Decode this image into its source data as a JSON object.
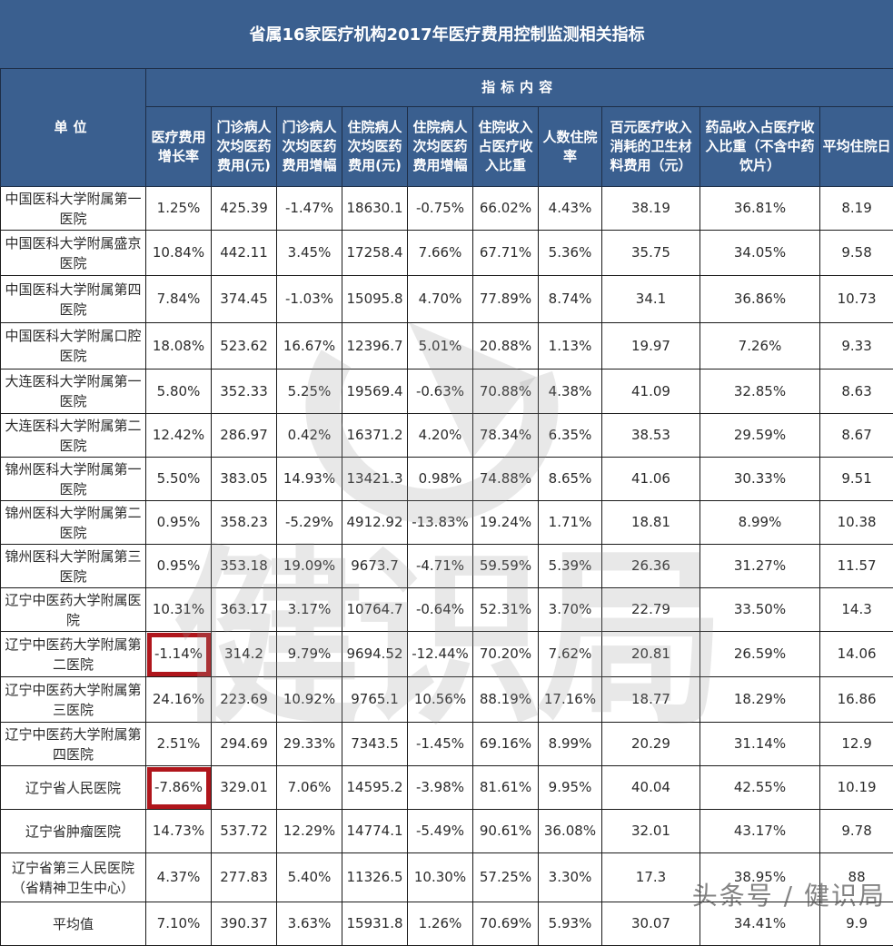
{
  "title": "省属16家医疗机构2017年医疗费用控制监测相关指标",
  "header": {
    "unit_label": "单位",
    "group_label": "指标内容",
    "columns": [
      "医疗费用增长率",
      "门诊病人次均医药费用(元)",
      "门诊病人次均医药费用增幅",
      "住院病人次均医药费用(元)",
      "住院病人次均医药费用增幅",
      "住院收入占医疗收入比重",
      "人数住院率",
      "百元医疗收入消耗的卫生材料费用（元）",
      "药品收入占医疗收入比重（不含中药饮片）",
      "平均住院日"
    ]
  },
  "rows": [
    {
      "unit": "中国医科大学附属第一医院",
      "values": [
        "1.25%",
        "425.39",
        "-1.47%",
        "18630.1",
        "-0.75%",
        "66.02%",
        "4.43%",
        "38.19",
        "36.81%",
        "8.19"
      ]
    },
    {
      "unit": "中国医科大学附属盛京医院",
      "values": [
        "10.84%",
        "442.11",
        "3.45%",
        "17258.4",
        "7.66%",
        "67.71%",
        "5.36%",
        "35.75",
        "34.05%",
        "9.58"
      ]
    },
    {
      "unit": "中国医科大学附属第四医院",
      "values": [
        "7.84%",
        "374.45",
        "-1.03%",
        "15095.8",
        "4.70%",
        "77.89%",
        "8.74%",
        "34.1",
        "36.86%",
        "10.73"
      ]
    },
    {
      "unit": "中国医科大学附属口腔医院",
      "values": [
        "18.08%",
        "523.62",
        "16.67%",
        "12396.7",
        "5.01%",
        "20.88%",
        "1.13%",
        "19.97",
        "7.26%",
        "9.33"
      ]
    },
    {
      "unit": "大连医科大学附属第一医院",
      "values": [
        "5.80%",
        "352.33",
        "5.25%",
        "19569.4",
        "-0.63%",
        "70.88%",
        "4.38%",
        "41.09",
        "32.85%",
        "8.63"
      ]
    },
    {
      "unit": "大连医科大学附属第二医院",
      "values": [
        "12.42%",
        "286.97",
        "0.42%",
        "16371.2",
        "4.20%",
        "78.34%",
        "6.35%",
        "38.53",
        "29.59%",
        "8.67"
      ]
    },
    {
      "unit": "锦州医科大学附属第一医院",
      "values": [
        "5.50%",
        "383.05",
        "14.93%",
        "13421.3",
        "0.98%",
        "74.88%",
        "8.65%",
        "41.06",
        "30.33%",
        "9.51"
      ]
    },
    {
      "unit": "锦州医科大学附属第二医院",
      "values": [
        "0.95%",
        "358.23",
        "-5.29%",
        "4912.92",
        "-13.83%",
        "19.24%",
        "1.71%",
        "18.81",
        "8.99%",
        "10.38"
      ]
    },
    {
      "unit": "锦州医科大学附属第三医院",
      "values": [
        "0.95%",
        "353.18",
        "19.09%",
        "9673.7",
        "-4.71%",
        "59.59%",
        "5.39%",
        "26.36",
        "31.27%",
        "11.57"
      ]
    },
    {
      "unit": "辽宁中医药大学附属医院",
      "values": [
        "10.31%",
        "363.17",
        "3.17%",
        "10764.7",
        "-0.64%",
        "52.31%",
        "3.70%",
        "22.79",
        "33.50%",
        "14.3"
      ]
    },
    {
      "unit": "辽宁中医药大学附属第二医院",
      "values": [
        "-1.14%",
        "314.2",
        "9.79%",
        "9694.52",
        "-12.44%",
        "70.20%",
        "7.62%",
        "20.81",
        "26.59%",
        "14.06"
      ],
      "highlight_first": true
    },
    {
      "unit": "辽宁中医药大学附属第三医院",
      "values": [
        "24.16%",
        "223.69",
        "10.92%",
        "9765.1",
        "10.56%",
        "88.19%",
        "17.16%",
        "18.77",
        "18.29%",
        "16.86"
      ]
    },
    {
      "unit": "辽宁中医药大学附属第四医院",
      "values": [
        "2.51%",
        "294.69",
        "29.33%",
        "7343.5",
        "-1.45%",
        "69.16%",
        "8.99%",
        "20.29",
        "31.14%",
        "12.9"
      ]
    },
    {
      "unit": "辽宁省人民医院",
      "values": [
        "-7.86%",
        "329.01",
        "7.06%",
        "14595.2",
        "-3.98%",
        "81.61%",
        "9.95%",
        "40.04",
        "42.55%",
        "10.19"
      ],
      "highlight_first": true
    },
    {
      "unit": "辽宁省肿瘤医院",
      "values": [
        "14.73%",
        "537.72",
        "12.29%",
        "14774.1",
        "-5.49%",
        "90.61%",
        "36.08%",
        "32.01",
        "43.17%",
        "9.78"
      ]
    },
    {
      "unit": "辽宁省第三人民医院（省精神卫生中心）",
      "values": [
        "4.37%",
        "277.83",
        "5.40%",
        "11326.5",
        "10.30%",
        "57.25%",
        "3.30%",
        "17.3",
        "38.95%",
        "88"
      ]
    },
    {
      "unit": "平均值",
      "values": [
        "7.10%",
        "390.37",
        "3.63%",
        "15931.8",
        "1.26%",
        "70.69%",
        "5.93%",
        "30.07",
        "34.41%",
        "9.9"
      ]
    }
  ],
  "colors": {
    "header_bg": "#3a5f8f",
    "header_text": "#ffffff",
    "highlight_border": "#b0161c",
    "grid": "#1a1a1a"
  },
  "watermark": {
    "text": "健识局",
    "footer": "头条号 / 健识局"
  },
  "chart_data": {
    "type": "table",
    "title": "省属16家医疗机构2017年医疗费用控制监测相关指标",
    "columns": [
      "单位",
      "医疗费用增长率",
      "门诊病人次均医药费用(元)",
      "门诊病人次均医药费用增幅",
      "住院病人次均医药费用(元)",
      "住院病人次均医药费用增幅",
      "住院收入占医疗收入比重",
      "人数住院率",
      "百元医疗收入消耗的卫生材料费用（元）",
      "药品收入占医疗收入比重（不含中药饮片）",
      "平均住院日"
    ],
    "rows": [
      [
        "中国医科大学附属第一医院",
        "1.25%",
        425.39,
        "-1.47%",
        18630.1,
        "-0.75%",
        "66.02%",
        "4.43%",
        38.19,
        "36.81%",
        8.19
      ],
      [
        "中国医科大学附属盛京医院",
        "10.84%",
        442.11,
        "3.45%",
        17258.4,
        "7.66%",
        "67.71%",
        "5.36%",
        35.75,
        "34.05%",
        9.58
      ],
      [
        "中国医科大学附属第四医院",
        "7.84%",
        374.45,
        "-1.03%",
        15095.8,
        "4.70%",
        "77.89%",
        "8.74%",
        34.1,
        "36.86%",
        10.73
      ],
      [
        "中国医科大学附属口腔医院",
        "18.08%",
        523.62,
        "16.67%",
        12396.7,
        "5.01%",
        "20.88%",
        "1.13%",
        19.97,
        "7.26%",
        9.33
      ],
      [
        "大连医科大学附属第一医院",
        "5.80%",
        352.33,
        "5.25%",
        19569.4,
        "-0.63%",
        "70.88%",
        "4.38%",
        41.09,
        "32.85%",
        8.63
      ],
      [
        "大连医科大学附属第二医院",
        "12.42%",
        286.97,
        "0.42%",
        16371.2,
        "4.20%",
        "78.34%",
        "6.35%",
        38.53,
        "29.59%",
        8.67
      ],
      [
        "锦州医科大学附属第一医院",
        "5.50%",
        383.05,
        "14.93%",
        13421.3,
        "0.98%",
        "74.88%",
        "8.65%",
        41.06,
        "30.33%",
        9.51
      ],
      [
        "锦州医科大学附属第二医院",
        "0.95%",
        358.23,
        "-5.29%",
        4912.92,
        "-13.83%",
        "19.24%",
        "1.71%",
        18.81,
        "8.99%",
        10.38
      ],
      [
        "锦州医科大学附属第三医院",
        "0.95%",
        353.18,
        "19.09%",
        9673.7,
        "-4.71%",
        "59.59%",
        "5.39%",
        26.36,
        "31.27%",
        11.57
      ],
      [
        "辽宁中医药大学附属医院",
        "10.31%",
        363.17,
        "3.17%",
        10764.7,
        "-0.64%",
        "52.31%",
        "3.70%",
        22.79,
        "33.50%",
        14.3
      ],
      [
        "辽宁中医药大学附属第二医院",
        "-1.14%",
        314.2,
        "9.79%",
        9694.52,
        "-12.44%",
        "70.20%",
        "7.62%",
        20.81,
        "26.59%",
        14.06
      ],
      [
        "辽宁中医药大学附属第三医院",
        "24.16%",
        223.69,
        "10.92%",
        9765.1,
        "10.56%",
        "88.19%",
        "17.16%",
        18.77,
        "18.29%",
        16.86
      ],
      [
        "辽宁中医药大学附属第四医院",
        "2.51%",
        294.69,
        "29.33%",
        7343.5,
        "-1.45%",
        "69.16%",
        "8.99%",
        20.29,
        "31.14%",
        12.9
      ],
      [
        "辽宁省人民医院",
        "-7.86%",
        329.01,
        "7.06%",
        14595.2,
        "-3.98%",
        "81.61%",
        "9.95%",
        40.04,
        "42.55%",
        10.19
      ],
      [
        "辽宁省肿瘤医院",
        "14.73%",
        537.72,
        "12.29%",
        14774.1,
        "-5.49%",
        "90.61%",
        "36.08%",
        32.01,
        "43.17%",
        9.78
      ],
      [
        "辽宁省第三人民医院（省精神卫生中心）",
        "4.37%",
        277.83,
        "5.40%",
        11326.5,
        "10.30%",
        "57.25%",
        "3.30%",
        17.3,
        "38.95%",
        88
      ],
      [
        "平均值",
        "7.10%",
        390.37,
        "3.63%",
        15931.8,
        "1.26%",
        "70.69%",
        "5.93%",
        30.07,
        "34.41%",
        9.9
      ]
    ]
  }
}
